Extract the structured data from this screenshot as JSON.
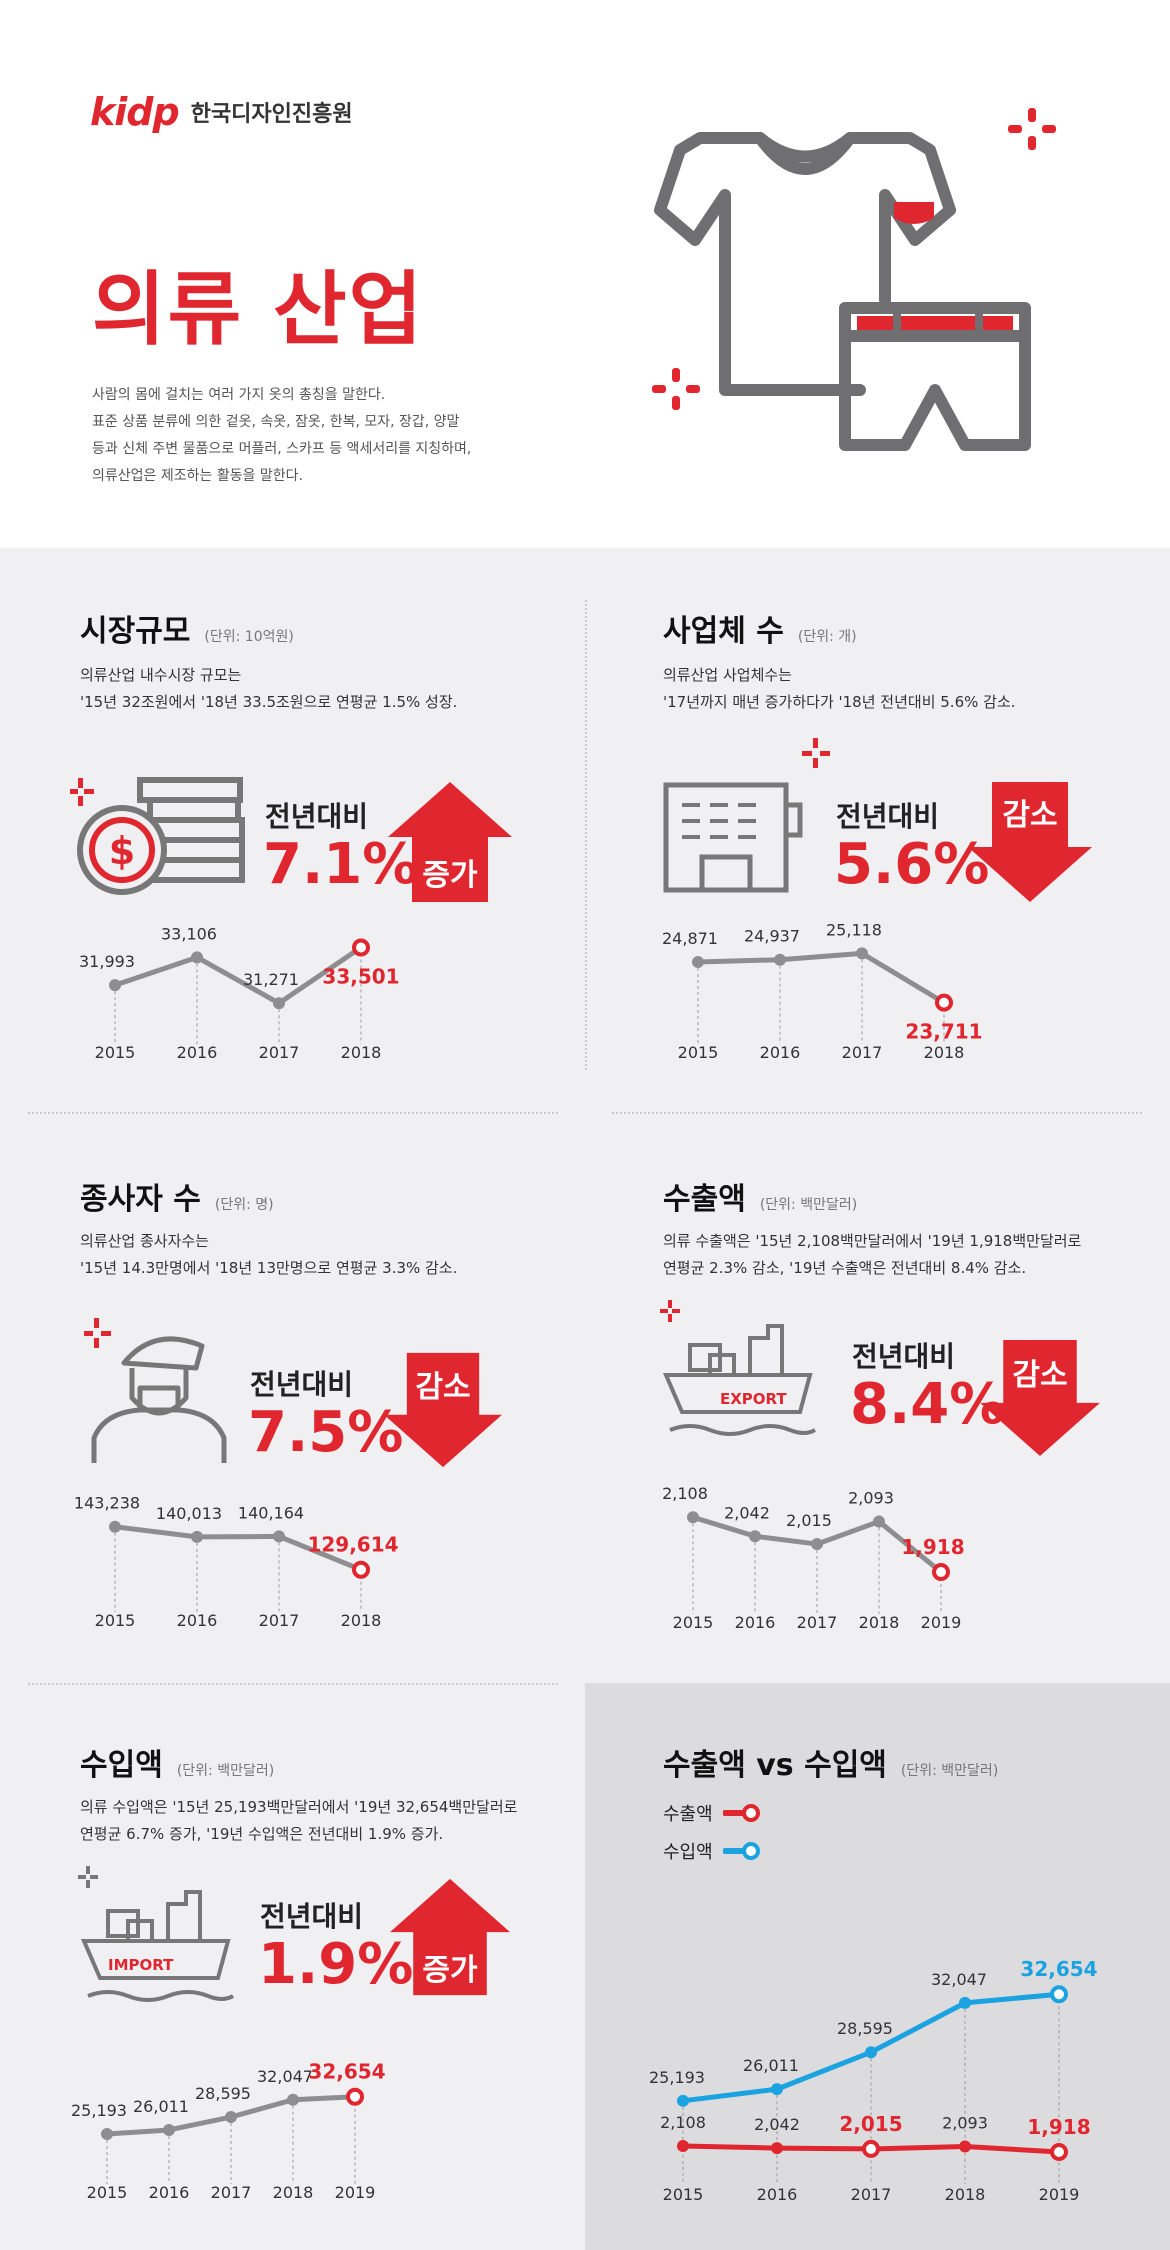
{
  "header": {
    "logo_mark": "kidp",
    "logo_name": "한국디자인진흥원",
    "title": "의류 산업",
    "description": [
      "사람의 몸에 걸치는 여러 가지 옷의 총칭을 말한다.",
      "표준 상품 분류에 의한 겉옷, 속옷, 잠옷, 한복, 모자, 장갑, 양말",
      "등과 신체 주변 물품으로 머플러, 스카프 등 액세서리를 지칭하며,",
      "의류산업은 제조하는 활동을 말한다."
    ]
  },
  "colors": {
    "accent": "#e0262f",
    "line_grey": "#8e8e90",
    "import_blue": "#1aa3e0",
    "panel_grey": "#dcdcde",
    "background": "#f0f0f2"
  },
  "sections": {
    "market": {
      "title": "시장규모",
      "unit": "(단위: 10억원)",
      "desc": [
        "의류산업 내수시장 규모는",
        "'15년 32조원에서 '18년 33.5조원으로 연평균 1.5% 성장."
      ],
      "yoy_label": "전년대비",
      "yoy_value": "7.1%",
      "direction": "증가",
      "icon": "money-coin-stack-icon"
    },
    "companies": {
      "title": "사업체 수",
      "unit": "(단위: 개)",
      "desc": [
        "의류산업 사업체수는",
        "'17년까지 매년 증가하다가 '18년 전년대비 5.6% 감소."
      ],
      "yoy_label": "전년대비",
      "yoy_value": "5.6%",
      "direction": "감소",
      "icon": "factory-building-icon"
    },
    "workers": {
      "title": "종사자 수",
      "unit": "(단위: 명)",
      "desc": [
        "의류산업 종사자수는",
        "'15년 14.3만명에서 '18년 13만명으로 연평균 3.3% 감소."
      ],
      "yoy_label": "전년대비",
      "yoy_value": "7.5%",
      "direction": "감소",
      "icon": "worker-person-icon"
    },
    "exports": {
      "title": "수출액",
      "unit": "(단위: 백만달러)",
      "desc": [
        "의류 수출액은 '15년 2,108백만달러에서 '19년 1,918백만달러로",
        "연평균 2.3% 감소, '19년 수출액은 전년대비 8.4% 감소."
      ],
      "yoy_label": "전년대비",
      "yoy_value": "8.4%",
      "direction": "감소",
      "icon": "export-ship-icon",
      "ship_label": "EXPORT"
    },
    "imports": {
      "title": "수입액",
      "unit": "(단위: 백만달러)",
      "desc": [
        "의류 수입액은 '15년 25,193백만달러에서 '19년 32,654백만달러로",
        "연평균 6.7% 증가, '19년 수입액은 전년대비 1.9% 증가."
      ],
      "yoy_label": "전년대비",
      "yoy_value": "1.9%",
      "direction": "증가",
      "icon": "import-ship-icon",
      "ship_label": "IMPORT"
    },
    "compare": {
      "title": "수출액 vs 수입액",
      "unit": "(단위: 백만달러)",
      "legend_export": "수출액",
      "legend_import": "수입액"
    }
  },
  "chart_data": [
    {
      "id": "market",
      "type": "line",
      "title": "시장규모",
      "categories": [
        "2015",
        "2016",
        "2017",
        "2018"
      ],
      "values": [
        31993,
        33106,
        31271,
        33501
      ],
      "labels": [
        "31,993",
        "33,106",
        "31,271",
        "33,501"
      ],
      "ylim": [
        31000,
        33800
      ]
    },
    {
      "id": "companies",
      "type": "line",
      "title": "사업체 수",
      "categories": [
        "2015",
        "2016",
        "2017",
        "2018"
      ],
      "values": [
        24871,
        24937,
        25118,
        23711
      ],
      "labels": [
        "24,871",
        "24,937",
        "25,118",
        "23,711"
      ],
      "ylim": [
        23500,
        25500
      ]
    },
    {
      "id": "workers",
      "type": "line",
      "title": "종사자 수",
      "categories": [
        "2015",
        "2016",
        "2017",
        "2018"
      ],
      "values": [
        143238,
        140013,
        140164,
        129614
      ],
      "labels": [
        "143,238",
        "140,013",
        "140,164",
        "129,614"
      ],
      "ylim": [
        127000,
        146000
      ]
    },
    {
      "id": "exports",
      "type": "line",
      "title": "수출액",
      "categories": [
        "2015",
        "2016",
        "2017",
        "2018",
        "2019"
      ],
      "values": [
        2108,
        2042,
        2015,
        2093,
        1918
      ],
      "labels": [
        "2,108",
        "2,042",
        "2,015",
        "2,093",
        "1,918"
      ],
      "ylim": [
        1880,
        2140
      ]
    },
    {
      "id": "imports",
      "type": "line",
      "title": "수입액",
      "categories": [
        "2015",
        "2016",
        "2017",
        "2018",
        "2019"
      ],
      "values": [
        25193,
        26011,
        28595,
        32047,
        32654
      ],
      "labels": [
        "25,193",
        "26,011",
        "28,595",
        "32,047",
        "32,654"
      ],
      "ylim": [
        20000,
        40000
      ]
    },
    {
      "id": "compare",
      "type": "line",
      "title": "수출액 vs 수입액",
      "categories": [
        "2015",
        "2016",
        "2017",
        "2018",
        "2019"
      ],
      "series": [
        {
          "name": "수입액",
          "values": [
            25193,
            26011,
            28595,
            32047,
            32654
          ],
          "labels": [
            "25,193",
            "26,011",
            "28,595",
            "32,047",
            "32,654"
          ]
        },
        {
          "name": "수출액",
          "values": [
            2108,
            2042,
            2015,
            2093,
            1918
          ],
          "labels": [
            "2,108",
            "2,042",
            "2,015",
            "2,093",
            "1,918"
          ]
        }
      ],
      "ylim": [
        0,
        34000
      ]
    }
  ]
}
